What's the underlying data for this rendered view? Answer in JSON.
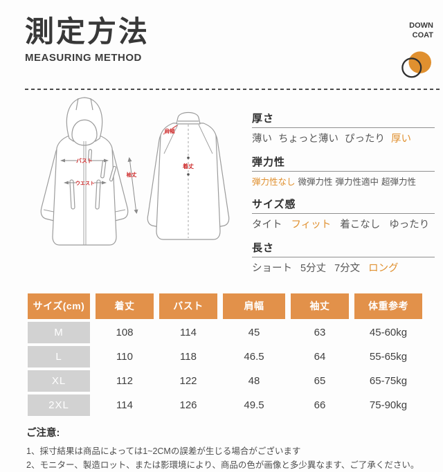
{
  "header": {
    "title": "測定方法",
    "subtitle": "MEASURING METHOD",
    "brand": [
      "DOWN",
      "COAT"
    ]
  },
  "diagram": {
    "front_labels": {
      "bust": "バスト",
      "waist": "ウエスト",
      "sleeve_length": "袖丈"
    },
    "back_labels": {
      "shoulder_width": "肩幅",
      "body_length": "着丈"
    }
  },
  "scales": {
    "items": [
      {
        "label": "厚さ",
        "options": [
          "薄い",
          "ちょっと薄い",
          "ぴったり",
          "厚い"
        ],
        "selected": "厚い"
      },
      {
        "label": "弾力性",
        "options": [
          "弾力性なし",
          "微弾力性",
          "弾力性適中",
          "超弾力性"
        ],
        "selected": "弾力性なし"
      },
      {
        "label": "サイズ感",
        "options": [
          "タイト",
          "フィット",
          "着こなし",
          "ゆったり"
        ],
        "selected": "フィット"
      },
      {
        "label": "長さ",
        "options": [
          "ショート",
          "5分丈",
          "7分文",
          "ロング"
        ],
        "selected": "ロング"
      }
    ]
  },
  "table": {
    "headers": [
      "サイズ(cm)",
      "着丈",
      "バスト",
      "肩幅",
      "袖丈",
      "体重参考"
    ],
    "rows": [
      {
        "size": "M",
        "values": [
          "108",
          "114",
          "45",
          "63",
          "45-60kg"
        ]
      },
      {
        "size": "L",
        "values": [
          "110",
          "118",
          "46.5",
          "64",
          "55-65kg"
        ]
      },
      {
        "size": "XL",
        "values": [
          "112",
          "122",
          "48",
          "65",
          "65-75kg"
        ]
      },
      {
        "size": "2XL",
        "values": [
          "114",
          "126",
          "49.5",
          "66",
          "75-90kg"
        ]
      }
    ]
  },
  "notes": {
    "title": "ご注意:",
    "items": [
      "1、採寸結果は商品によっては1~2CMの誤差が生じる場合がございます",
      "2、モニター、製造ロット、または影環境により、商品の色が画像と多少異なます、ご了承ください。"
    ]
  },
  "colors": {
    "accent": "#E0902F",
    "table_header": "#E2914A",
    "size_cell": "#D2D2D2",
    "diagram_label_red": "#CC2A2A",
    "title_ink": "#3A3A3A"
  }
}
